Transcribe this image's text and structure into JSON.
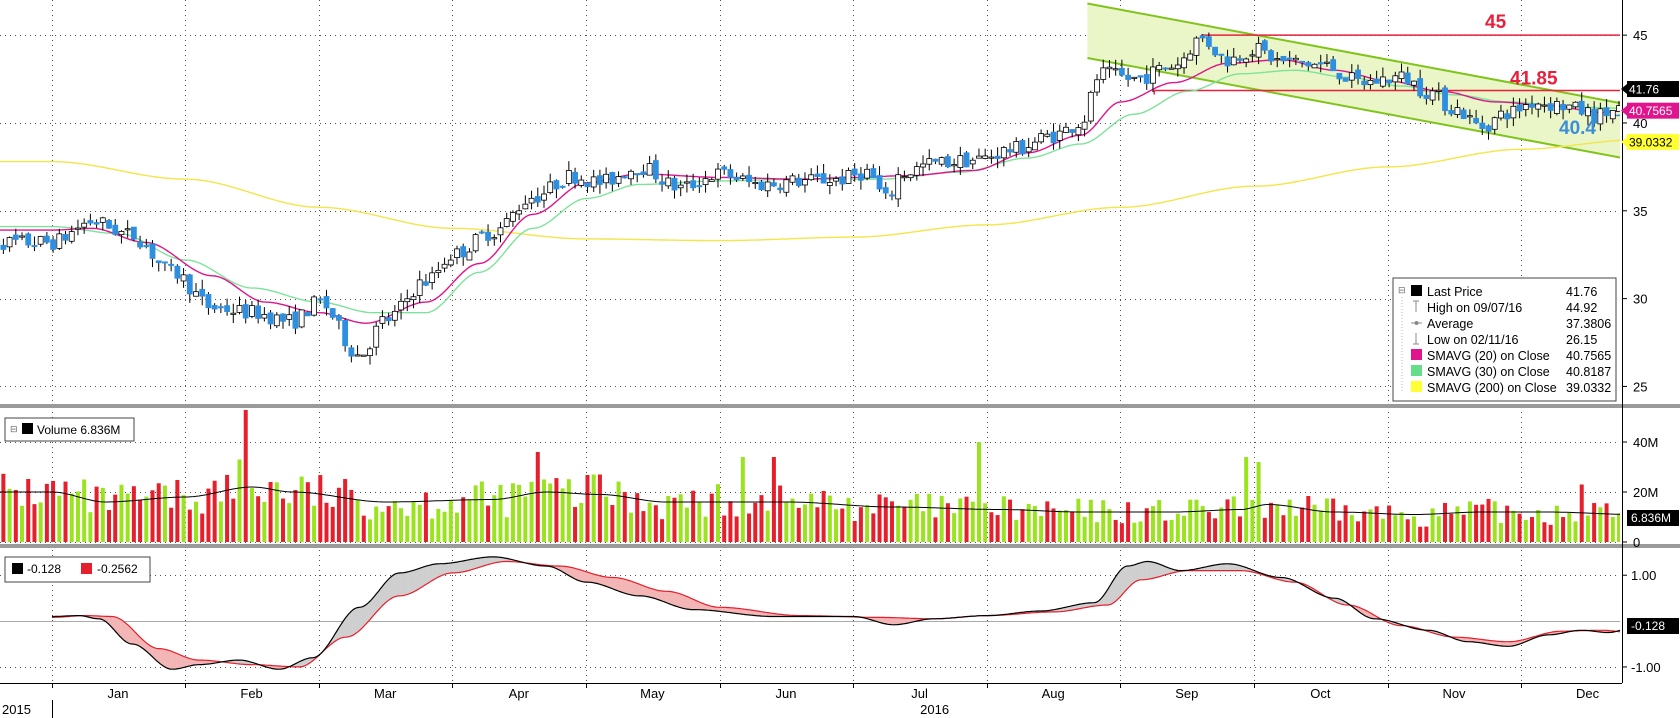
{
  "chart_data": [
    {
      "type": "candlestick",
      "panel": "price",
      "ylim": [
        24,
        47
      ],
      "y_ticks": [
        "25",
        "30",
        "35",
        "40",
        "45"
      ],
      "grid": true,
      "horizontal_lines": [
        {
          "value": 45,
          "label": "45",
          "color": "#e8203c"
        },
        {
          "value": 41.85,
          "label": "41.85",
          "color": "#e8203c"
        },
        {
          "value": 40.4,
          "label": "40.4",
          "color": "#3b8fd6"
        }
      ],
      "channel": {
        "start_month_index": 7.75,
        "end_month_index": 11.9,
        "upper": [
          46.8,
          40.9
        ],
        "lower": [
          43.7,
          37.8
        ],
        "color": "#7fc41a",
        "fill": "#eaf5c8"
      },
      "price_tags": [
        {
          "text": "41.76",
          "value": 41.76,
          "bg": "#000000",
          "fg": "#ffffff"
        },
        {
          "text": "40.7565",
          "value": 40.7565,
          "bg": "#e0148c",
          "fg": "#ffffff"
        },
        {
          "text": "39.0332",
          "value": 39.0332,
          "bg": "#ffff33",
          "fg": "#000000"
        }
      ],
      "legend": {
        "placement": "bottom-right",
        "items": [
          {
            "label": "Last Price",
            "value": "41.76",
            "color": "#000000",
            "marker": "square"
          },
          {
            "label": "High on 09/07/16",
            "value": "44.92",
            "color": "#888888",
            "marker": "high"
          },
          {
            "label": "Average",
            "value": "37.3806",
            "color": "#888888",
            "marker": "avg"
          },
          {
            "label": "Low on 02/11/16",
            "value": "26.15",
            "color": "#888888",
            "marker": "low"
          },
          {
            "label": "SMAVG (20) on Close",
            "value": "40.7565",
            "color": "#e0148c",
            "marker": "square"
          },
          {
            "label": "SMAVG (30) on Close",
            "value": "40.8187",
            "color": "#66dd88",
            "marker": "square"
          },
          {
            "label": "SMAVG (200) on Close",
            "value": "39.0332",
            "color": "#ffff33",
            "marker": "square"
          }
        ]
      },
      "close_anchors": [
        [
          0,
          33.2
        ],
        [
          0.3,
          34.4
        ],
        [
          0.6,
          33.6
        ],
        [
          0.9,
          31.5
        ],
        [
          1.2,
          29.5
        ],
        [
          1.5,
          29.2
        ],
        [
          1.8,
          28.7
        ],
        [
          2.0,
          29.8
        ],
        [
          2.3,
          26.8
        ],
        [
          2.5,
          28.8
        ],
        [
          2.8,
          31
        ],
        [
          3.0,
          32.5
        ],
        [
          3.3,
          33.8
        ],
        [
          3.6,
          35.8
        ],
        [
          3.9,
          37
        ],
        [
          4.1,
          36.6
        ],
        [
          4.4,
          37.5
        ],
        [
          4.7,
          36.3
        ],
        [
          5.0,
          37.1
        ],
        [
          5.3,
          36.5
        ],
        [
          5.6,
          36.7
        ],
        [
          5.9,
          36.8
        ],
        [
          6.1,
          37.2
        ],
        [
          6.25,
          35.6
        ],
        [
          6.35,
          37.1
        ],
        [
          6.6,
          37.7
        ],
        [
          6.9,
          37.9
        ],
        [
          7.2,
          38.5
        ],
        [
          7.5,
          39.3
        ],
        [
          7.7,
          40
        ],
        [
          7.85,
          42.8
        ],
        [
          8.1,
          42.5
        ],
        [
          8.4,
          43.3
        ],
        [
          8.6,
          44.8
        ],
        [
          8.8,
          43.6
        ],
        [
          9.0,
          44.2
        ],
        [
          9.2,
          43.5
        ],
        [
          9.5,
          43.3
        ],
        [
          9.8,
          42.3
        ],
        [
          10.1,
          42.6
        ],
        [
          10.3,
          41.8
        ],
        [
          10.5,
          40.8
        ],
        [
          10.7,
          39.8
        ],
        [
          10.9,
          40.6
        ],
        [
          11.1,
          41.2
        ],
        [
          11.3,
          41
        ],
        [
          11.45,
          40.7
        ],
        [
          11.55,
          40.4
        ],
        [
          11.75,
          40.8
        ],
        [
          11.85,
          41.76
        ]
      ],
      "sma20_anchors": [
        [
          0,
          33.9
        ],
        [
          0.3,
          34
        ],
        [
          0.7,
          33.2
        ],
        [
          1.2,
          31.3
        ],
        [
          1.6,
          29.8
        ],
        [
          2.0,
          29.2
        ],
        [
          2.35,
          28.6
        ],
        [
          2.8,
          29.8
        ],
        [
          3.2,
          32
        ],
        [
          3.6,
          34.8
        ],
        [
          4.0,
          36.6
        ],
        [
          4.4,
          37.1
        ],
        [
          5.0,
          36.9
        ],
        [
          5.6,
          36.8
        ],
        [
          6.0,
          36.9
        ],
        [
          6.4,
          37
        ],
        [
          6.9,
          37.3
        ],
        [
          7.3,
          38.3
        ],
        [
          7.7,
          39.3
        ],
        [
          8.0,
          41.2
        ],
        [
          8.4,
          42.3
        ],
        [
          8.8,
          43.4
        ],
        [
          9.2,
          43.6
        ],
        [
          9.6,
          43
        ],
        [
          10.0,
          42.4
        ],
        [
          10.4,
          41.8
        ],
        [
          10.8,
          41.2
        ],
        [
          11.2,
          41
        ],
        [
          11.6,
          40.6
        ],
        [
          11.85,
          40.7565
        ]
      ],
      "sma30_anchors": [
        [
          0,
          34.1
        ],
        [
          0.5,
          33.7
        ],
        [
          1.0,
          32.2
        ],
        [
          1.5,
          30.6
        ],
        [
          2.0,
          29.8
        ],
        [
          2.4,
          29.2
        ],
        [
          2.8,
          29.2
        ],
        [
          3.2,
          31.5
        ],
        [
          3.6,
          34
        ],
        [
          4.0,
          35.7
        ],
        [
          4.4,
          36.5
        ],
        [
          5.0,
          36.7
        ],
        [
          5.6,
          36.8
        ],
        [
          6.2,
          36.8
        ],
        [
          6.8,
          37.2
        ],
        [
          7.3,
          38
        ],
        [
          7.7,
          38.8
        ],
        [
          8.1,
          40.5
        ],
        [
          8.5,
          41.8
        ],
        [
          8.9,
          42.8
        ],
        [
          9.3,
          43
        ],
        [
          9.7,
          42.6
        ],
        [
          10.1,
          42.1
        ],
        [
          10.5,
          41.6
        ],
        [
          10.9,
          41.2
        ],
        [
          11.4,
          40.9
        ],
        [
          11.85,
          40.8187
        ]
      ],
      "sma200_anchors": [
        [
          0,
          37.8
        ],
        [
          1.0,
          36.8
        ],
        [
          2.0,
          35.2
        ],
        [
          3.0,
          34
        ],
        [
          4.0,
          33.4
        ],
        [
          5.0,
          33.3
        ],
        [
          6.0,
          33.5
        ],
        [
          7.0,
          34.2
        ],
        [
          8.0,
          35.2
        ],
        [
          9.0,
          36.4
        ],
        [
          10.0,
          37.5
        ],
        [
          11.0,
          38.5
        ],
        [
          11.85,
          39.0332
        ]
      ]
    },
    {
      "type": "bar",
      "panel": "volume",
      "title": "Volume 6.836M",
      "ylim": [
        0,
        52
      ],
      "y_ticks": [
        "0",
        "20M",
        "40M"
      ],
      "last_tag": "6.836M",
      "up_color": "#9be31e",
      "down_color": "#e51f2b",
      "spikes": [
        [
          1.45,
          53
        ],
        [
          1.42,
          33
        ],
        [
          1.65,
          24
        ],
        [
          3.62,
          36
        ],
        [
          4.08,
          27
        ],
        [
          5.17,
          34
        ],
        [
          5.4,
          34
        ],
        [
          6.95,
          40
        ],
        [
          8.95,
          34
        ],
        [
          9.05,
          32
        ],
        [
          11.45,
          23
        ]
      ],
      "average_anchors": [
        [
          0,
          20
        ],
        [
          0.4,
          16
        ],
        [
          1.0,
          18
        ],
        [
          1.5,
          22
        ],
        [
          1.8,
          20
        ],
        [
          2.5,
          16
        ],
        [
          3.3,
          17
        ],
        [
          3.7,
          20
        ],
        [
          4.1,
          19
        ],
        [
          4.6,
          16
        ],
        [
          5.5,
          16
        ],
        [
          6.3,
          14
        ],
        [
          7.1,
          13
        ],
        [
          7.7,
          12
        ],
        [
          8.4,
          12
        ],
        [
          8.9,
          13
        ],
        [
          9.1,
          15
        ],
        [
          9.6,
          12
        ],
        [
          10.2,
          11
        ],
        [
          10.7,
          12
        ],
        [
          11.2,
          12
        ],
        [
          11.85,
          11
        ]
      ]
    },
    {
      "type": "line",
      "panel": "oscillator",
      "ylim": [
        -1.35,
        1.55
      ],
      "y_ticks": [
        "1.00",
        "-1.00"
      ],
      "zero_tag": "-0.128",
      "series": [
        {
          "name": "-0.128",
          "color": "#000000",
          "anchors": [
            [
              0,
              0.1
            ],
            [
              0.2,
              0.12
            ],
            [
              0.35,
              0.05
            ],
            [
              0.6,
              -0.5
            ],
            [
              0.9,
              -1.05
            ],
            [
              1.1,
              -0.95
            ],
            [
              1.4,
              -0.85
            ],
            [
              1.7,
              -1.05
            ],
            [
              1.95,
              -0.8
            ],
            [
              2.3,
              0.3
            ],
            [
              2.6,
              1.05
            ],
            [
              2.9,
              1.25
            ],
            [
              3.3,
              1.4
            ],
            [
              3.7,
              1.2
            ],
            [
              4.0,
              0.85
            ],
            [
              4.4,
              0.55
            ],
            [
              4.8,
              0.25
            ],
            [
              5.4,
              0.1
            ],
            [
              6.0,
              0.1
            ],
            [
              6.3,
              -0.08
            ],
            [
              6.6,
              0.05
            ],
            [
              7.0,
              0.12
            ],
            [
              7.4,
              0.22
            ],
            [
              7.8,
              0.4
            ],
            [
              8.05,
              1.2
            ],
            [
              8.2,
              1.3
            ],
            [
              8.45,
              1.1
            ],
            [
              8.8,
              1.25
            ],
            [
              9.2,
              0.95
            ],
            [
              9.6,
              0.5
            ],
            [
              9.9,
              0.05
            ],
            [
              10.3,
              -0.2
            ],
            [
              10.6,
              -0.45
            ],
            [
              10.9,
              -0.55
            ],
            [
              11.2,
              -0.3
            ],
            [
              11.45,
              -0.2
            ],
            [
              11.65,
              -0.25
            ],
            [
              11.85,
              -0.128
            ]
          ]
        },
        {
          "name": "-0.2562",
          "color": "#e51f2b",
          "anchors": [
            [
              0,
              0.08
            ],
            [
              0.25,
              0.12
            ],
            [
              0.45,
              0.1
            ],
            [
              0.8,
              -0.6
            ],
            [
              1.1,
              -0.85
            ],
            [
              1.5,
              -0.95
            ],
            [
              1.85,
              -1.0
            ],
            [
              2.2,
              -0.35
            ],
            [
              2.6,
              0.55
            ],
            [
              3.0,
              1.05
            ],
            [
              3.4,
              1.3
            ],
            [
              3.8,
              1.2
            ],
            [
              4.2,
              0.95
            ],
            [
              4.6,
              0.65
            ],
            [
              5.0,
              0.3
            ],
            [
              5.6,
              0.12
            ],
            [
              6.2,
              0.08
            ],
            [
              6.6,
              0.05
            ],
            [
              7.0,
              0.12
            ],
            [
              7.5,
              0.2
            ],
            [
              7.9,
              0.35
            ],
            [
              8.15,
              0.9
            ],
            [
              8.5,
              1.1
            ],
            [
              8.9,
              1.1
            ],
            [
              9.3,
              0.85
            ],
            [
              9.7,
              0.35
            ],
            [
              10.1,
              -0.1
            ],
            [
              10.5,
              -0.35
            ],
            [
              10.9,
              -0.45
            ],
            [
              11.3,
              -0.22
            ],
            [
              11.6,
              -0.2
            ],
            [
              11.85,
              -0.2562
            ]
          ]
        }
      ]
    }
  ],
  "x_axis": {
    "months": [
      "Jan",
      "Feb",
      "Mar",
      "Apr",
      "May",
      "Jun",
      "Jul",
      "Aug",
      "Sep",
      "Oct",
      "Nov",
      "Dec"
    ],
    "years": [
      "2015",
      "2016"
    ]
  },
  "colors": {
    "up_candle": "#ffffff",
    "down_candle": "#2e8fe0",
    "wick": "#000000",
    "separator": "#9a9a9a"
  }
}
